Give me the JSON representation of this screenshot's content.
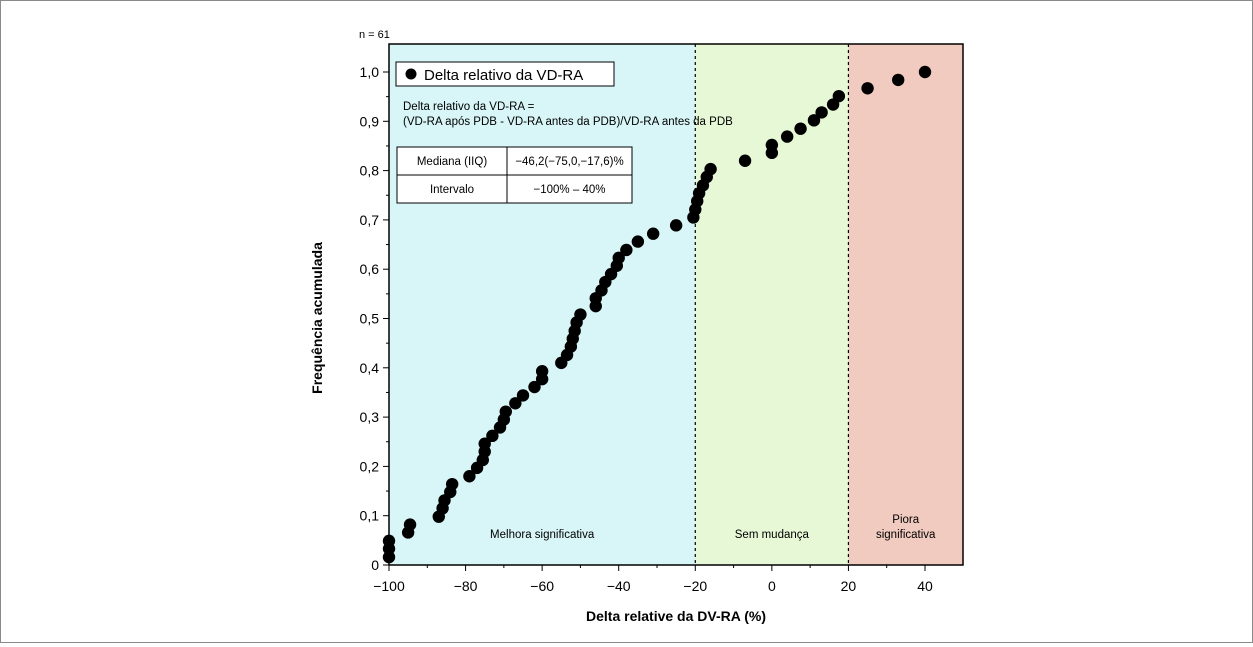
{
  "figure": {
    "sample_size": "n = 61"
  },
  "chart_data": {
    "type": "scatter",
    "xlabel": "Delta relative da DV-RA (%)",
    "ylabel": "Frequência acumulada",
    "xlim": [
      -100,
      50
    ],
    "ylim": [
      0,
      1.05
    ],
    "xticks": [
      "−100",
      "−80",
      "−60",
      "−40",
      "−20",
      "0",
      "20",
      "40"
    ],
    "yticks": [
      "0",
      "0,1",
      "0,2",
      "0,3",
      "0,4",
      "0,5",
      "0,6",
      "0,7",
      "0,8",
      "0,9",
      "1,0"
    ],
    "grid": false,
    "legend": {
      "label": "Delta relativo da VD-RA",
      "position": "top-left"
    },
    "regions": [
      {
        "label": "Melhora significativa",
        "x_from": -100,
        "x_to": -20,
        "color": "#d8f6f8"
      },
      {
        "label": "Sem mudança",
        "x_from": -20,
        "x_to": 20,
        "color": "#e6f8d5"
      },
      {
        "label_lines": [
          "Piora",
          "significativa"
        ],
        "x_from": 20,
        "x_to": 50,
        "color": "#f2cbc0"
      }
    ],
    "thresholds": [
      -20,
      20
    ],
    "formula": {
      "line1": "Delta relativo da VD-RA =",
      "line2": "(VD-RA após PDB - VD-RA antes da PDB)/VD-RA antes da PDB"
    },
    "stats_table": [
      {
        "label": "Mediana (IIQ)",
        "value": "−46,2(−75,0,−17,6)%"
      },
      {
        "label": "Intervalo",
        "value": "−100% – 40%"
      }
    ],
    "series": [
      {
        "name": "Delta relativo da VD-RA",
        "marker_color": "#000000",
        "x": [
          -100,
          -100,
          -100,
          -95,
          -94.5,
          -87,
          -86,
          -85.5,
          -84,
          -83.5,
          -79,
          -77,
          -75.5,
          -75,
          -75,
          -73,
          -71,
          -70,
          -69.5,
          -67,
          -65,
          -62,
          -60,
          -60,
          -55,
          -53.5,
          -52.5,
          -52,
          -51.5,
          -51,
          -50,
          -46,
          -46,
          -44.5,
          -43.5,
          -42,
          -40.5,
          -40,
          -38,
          -35,
          -31,
          -25,
          -20.5,
          -20,
          -19.5,
          -19,
          -18,
          -17,
          -16,
          -7,
          0,
          0,
          4,
          7.5,
          11,
          13,
          16,
          17.5,
          25,
          33,
          40
        ],
        "y": [
          0.016,
          0.033,
          0.049,
          0.066,
          0.082,
          0.098,
          0.115,
          0.131,
          0.148,
          0.164,
          0.18,
          0.197,
          0.213,
          0.23,
          0.246,
          0.262,
          0.279,
          0.295,
          0.311,
          0.328,
          0.344,
          0.361,
          0.377,
          0.393,
          0.41,
          0.426,
          0.443,
          0.459,
          0.475,
          0.492,
          0.508,
          0.525,
          0.541,
          0.557,
          0.574,
          0.59,
          0.607,
          0.623,
          0.639,
          0.656,
          0.672,
          0.689,
          0.705,
          0.721,
          0.738,
          0.754,
          0.77,
          0.787,
          0.803,
          0.82,
          0.836,
          0.852,
          0.869,
          0.885,
          0.902,
          0.918,
          0.934,
          0.951,
          0.967,
          0.984,
          1.0
        ]
      }
    ]
  }
}
